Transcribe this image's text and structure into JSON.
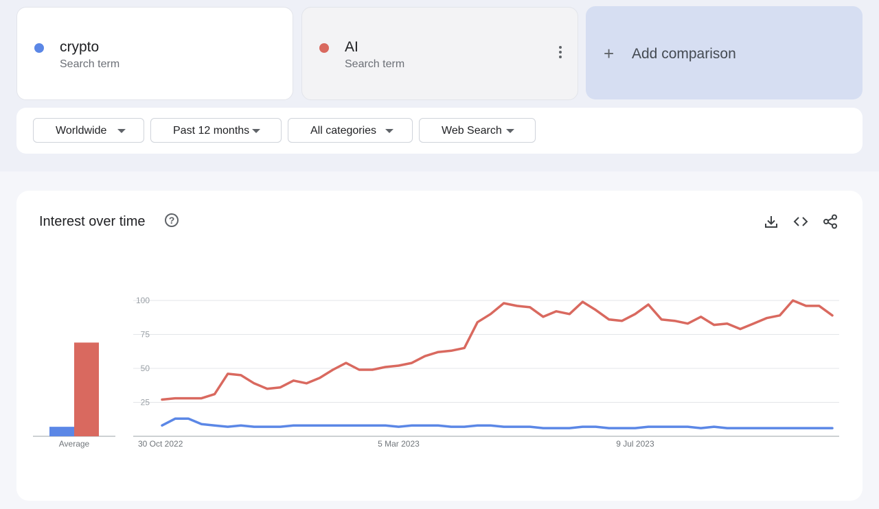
{
  "terms": [
    {
      "name": "crypto",
      "subtitle": "Search term",
      "color": "#5b87e6"
    },
    {
      "name": "AI",
      "subtitle": "Search term",
      "color": "#d9695f"
    }
  ],
  "add_comparison": {
    "label": "Add comparison",
    "icon": "plus-icon"
  },
  "filters": {
    "region": "Worldwide",
    "period": "Past 12 months",
    "category": "All categories",
    "search_type": "Web Search"
  },
  "panel": {
    "title": "Interest over time",
    "help_icon": "help-circle-icon",
    "actions": [
      "download-icon",
      "embed-code-icon",
      "share-icon"
    ]
  },
  "chart_data": {
    "type": "line",
    "title": "",
    "x_tick_labels": [
      "30 Oct 2022",
      "5 Mar 2023",
      "9 Jul 2023"
    ],
    "x_tick_index": [
      0,
      18,
      36
    ],
    "y_ticks": [
      25,
      50,
      75,
      100
    ],
    "ylim": [
      0,
      100
    ],
    "grid": true,
    "series": [
      {
        "name": "crypto",
        "color": "#5b87e6",
        "average": 7,
        "values": [
          8,
          13,
          13,
          9,
          8,
          7,
          8,
          7,
          7,
          7,
          8,
          8,
          8,
          8,
          8,
          8,
          8,
          8,
          7,
          8,
          8,
          8,
          7,
          7,
          8,
          8,
          7,
          7,
          7,
          6,
          6,
          6,
          7,
          7,
          6,
          6,
          6,
          7,
          7,
          7,
          7,
          6,
          7,
          6,
          6,
          6,
          6,
          6,
          6,
          6,
          6,
          6
        ]
      },
      {
        "name": "AI",
        "color": "#d9695f",
        "average": 69,
        "values": [
          27,
          28,
          28,
          28,
          31,
          46,
          45,
          39,
          35,
          36,
          41,
          39,
          43,
          49,
          54,
          49,
          49,
          51,
          52,
          54,
          59,
          62,
          63,
          65,
          84,
          90,
          98,
          96,
          95,
          88,
          92,
          90,
          99,
          93,
          86,
          85,
          90,
          97,
          86,
          85,
          83,
          88,
          82,
          83,
          79,
          83,
          87,
          89,
          100,
          96,
          96,
          89
        ]
      }
    ],
    "average_label": "Average"
  }
}
